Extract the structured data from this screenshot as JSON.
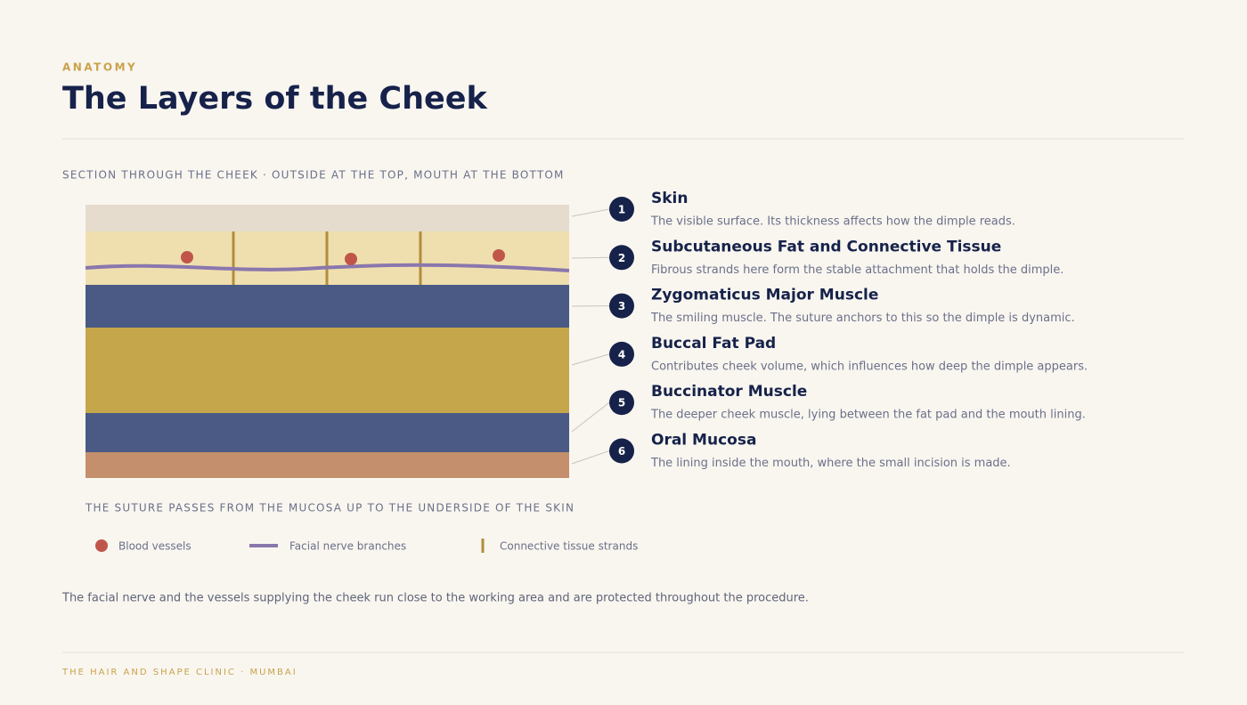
{
  "header": {
    "eyebrow": "ANATOMY",
    "title": "The Layers of the Cheek"
  },
  "section_label": "SECTION THROUGH THE CHEEK · OUTSIDE AT THE TOP, MOUTH AT THE BOTTOM",
  "layers": [
    {
      "number": 1,
      "name": "Skin",
      "description": "The visible surface. Its thickness affects how the dimple reads."
    },
    {
      "number": 2,
      "name": "Subcutaneous Fat and Connective Tissue",
      "description": "Fibrous strands here form the stable attachment that holds the dimple."
    },
    {
      "number": 3,
      "name": "Zygomaticus Major Muscle",
      "description": "The smiling muscle. The suture anchors to this so the dimple is dynamic."
    },
    {
      "number": 4,
      "name": "Buccal Fat Pad",
      "description": "Contributes cheek volume, which influences how deep the dimple appears."
    },
    {
      "number": 5,
      "name": "Buccinator Muscle",
      "description": "The deeper cheek muscle, lying between the fat pad and the mouth lining."
    },
    {
      "number": 6,
      "name": "Oral Mucosa",
      "description": "The lining inside the mouth, where the small incision is made."
    }
  ],
  "caption": "THE SUTURE PASSES FROM THE MUCOSA UP TO THE UNDERSIDE OF THE SKIN",
  "legend": [
    "Blood vessels",
    "Facial nerve branches",
    "Connective tissue strands"
  ],
  "note": "The facial nerve and the vessels supplying the cheek run close to the working area and are protected throughout the procedure.",
  "footer": "THE HAIR AND SHAPE CLINIC · MUMBAI"
}
